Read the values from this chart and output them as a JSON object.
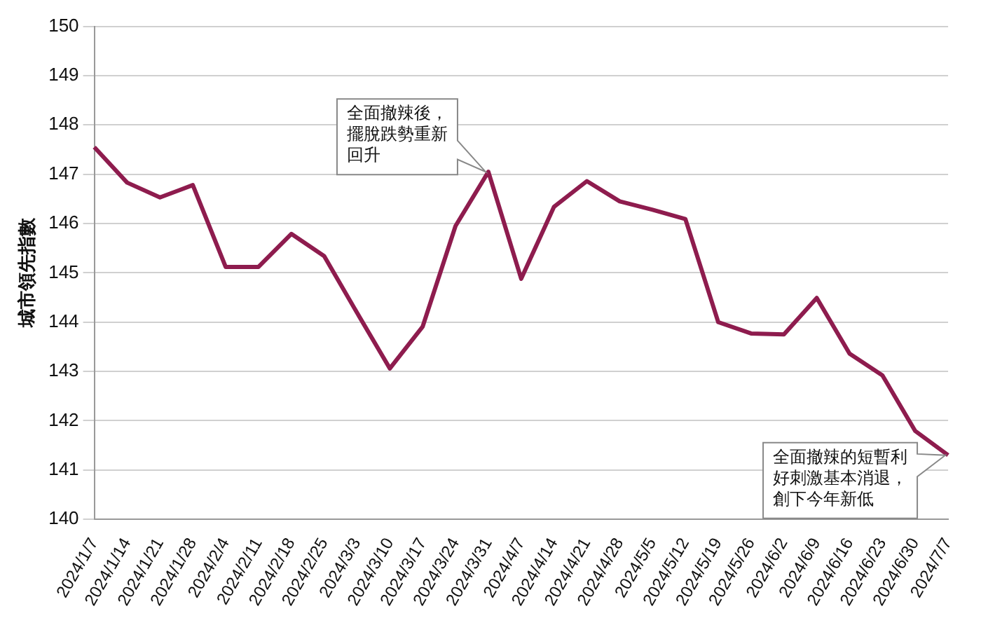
{
  "chart_data": {
    "type": "line",
    "ylabel": "城市領先指數",
    "categories": [
      "2024/1/7",
      "2024/1/14",
      "2024/1/21",
      "2024/1/28",
      "2024/2/4",
      "2024/2/11",
      "2024/2/18",
      "2024/2/25",
      "2024/3/3",
      "2024/3/10",
      "2024/3/17",
      "2024/3/24",
      "2024/3/31",
      "2024/4/7",
      "2024/4/14",
      "2024/4/21",
      "2024/4/28",
      "2024/5/5",
      "2024/5/12",
      "2024/5/19",
      "2024/5/26",
      "2024/6/2",
      "2024/6/9",
      "2024/6/16",
      "2024/6/23",
      "2024/6/30",
      "2024/7/7"
    ],
    "series": [
      {
        "color": "#8e1c4e",
        "values": [
          147.55,
          146.83,
          146.53,
          146.78,
          145.12,
          145.12,
          145.79,
          145.34,
          144.19,
          143.06,
          143.91,
          145.95,
          147.05,
          144.88,
          146.34,
          146.86,
          146.45,
          146.28,
          146.09,
          144.0,
          143.77,
          143.75,
          144.49,
          143.36,
          142.92,
          141.79,
          141.3
        ]
      }
    ],
    "ylim": [
      140,
      150
    ],
    "yticks": [
      140,
      141,
      142,
      143,
      144,
      145,
      146,
      147,
      148,
      149,
      150
    ],
    "grid": "y",
    "legend": false,
    "marker": "none",
    "line_style": "solid",
    "annotations": [
      {
        "text": "全面撤辣後，擺脫跌勢重新回升",
        "x": "2024/3/31",
        "y": 147.05
      },
      {
        "text": "全面撤辣的短暫利好刺激基本消退，創下今年新低",
        "x": "2024/7/7",
        "y": 141.3
      }
    ]
  }
}
